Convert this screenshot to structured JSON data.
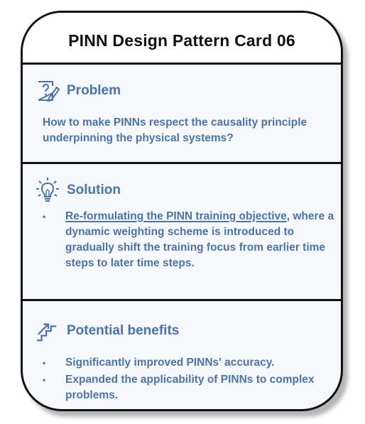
{
  "card": {
    "title": "PINN Design Pattern Card 06"
  },
  "problem": {
    "icon": "question-note-icon",
    "heading": "Problem",
    "text": "How to make PINNs respect the causality principle underpinning the physical systems?"
  },
  "solution": {
    "icon": "lightbulb-icon",
    "heading": "Solution",
    "bullets": [
      {
        "link": "Re-formulating the PINN training objective",
        "rest": ", where a dynamic weighting scheme is introduced to gradually shift the training focus from earlier time steps to later time steps."
      }
    ]
  },
  "benefits": {
    "icon": "stairs-arrow-icon",
    "heading": "Potential benefits",
    "bullets": [
      "Significantly improved PINNs' accuracy.",
      "Expanded the applicability of PINNs to complex problems."
    ]
  },
  "colors": {
    "accent": "#4a74ad",
    "border": "#111111",
    "background": "#f6f8fb"
  }
}
